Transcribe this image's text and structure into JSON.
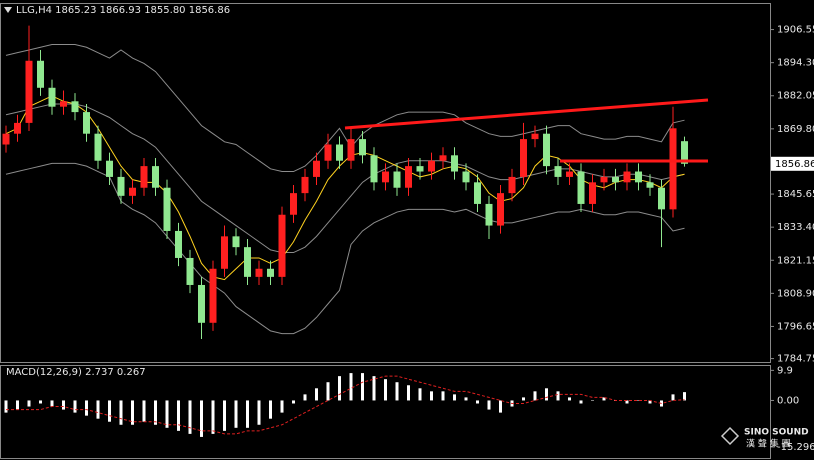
{
  "chart_data": [
    {
      "type": "candlestick",
      "title": "LLG,H4  1865.23 1866.93 1855.80 1856.86",
      "open": [
        1864,
        1868,
        1872,
        1895,
        1885,
        1878,
        1880,
        1876,
        1868,
        1858,
        1852,
        1845,
        1848,
        1856,
        1848,
        1832,
        1822,
        1812,
        1798,
        1818,
        1830,
        1826,
        1815,
        1818,
        1815,
        1838,
        1846,
        1852,
        1858,
        1864,
        1858,
        1866,
        1860,
        1850,
        1854,
        1848,
        1856,
        1854,
        1858,
        1860,
        1854,
        1850,
        1842,
        1834,
        1846,
        1852,
        1866,
        1868,
        1856,
        1852,
        1854,
        1842,
        1850,
        1852,
        1850,
        1854,
        1850,
        1848,
        1840,
        1865.23
      ],
      "high": [
        1871,
        1875,
        1908,
        1899,
        1888,
        1884,
        1883,
        1879,
        1871,
        1861,
        1855,
        1851,
        1859,
        1859,
        1851,
        1835,
        1825,
        1815,
        1821,
        1834,
        1833,
        1829,
        1821,
        1821,
        1841,
        1849,
        1855,
        1861,
        1868,
        1867,
        1870,
        1869,
        1863,
        1857,
        1857,
        1859,
        1859,
        1861,
        1863,
        1863,
        1857,
        1853,
        1845,
        1849,
        1855,
        1872,
        1871,
        1871,
        1859,
        1857,
        1857,
        1853,
        1855,
        1855,
        1857,
        1857,
        1853,
        1851,
        1878,
        1866.93
      ],
      "low": [
        1861,
        1865,
        1869,
        1882,
        1875,
        1875,
        1873,
        1865,
        1855,
        1849,
        1842,
        1842,
        1845,
        1845,
        1829,
        1819,
        1809,
        1792,
        1795,
        1815,
        1823,
        1812,
        1812,
        1812,
        1812,
        1835,
        1843,
        1849,
        1855,
        1855,
        1855,
        1857,
        1847,
        1847,
        1845,
        1845,
        1851,
        1851,
        1855,
        1851,
        1847,
        1839,
        1829,
        1831,
        1843,
        1849,
        1863,
        1853,
        1849,
        1849,
        1839,
        1839,
        1847,
        1847,
        1847,
        1847,
        1845,
        1826,
        1837,
        1855.8
      ],
      "close": [
        1868,
        1872,
        1895,
        1885,
        1878,
        1880,
        1876,
        1868,
        1858,
        1852,
        1845,
        1848,
        1856,
        1848,
        1832,
        1822,
        1812,
        1798,
        1818,
        1830,
        1826,
        1815,
        1818,
        1815,
        1838,
        1846,
        1852,
        1858,
        1864,
        1858,
        1866,
        1860,
        1850,
        1854,
        1848,
        1856,
        1854,
        1858,
        1860,
        1854,
        1850,
        1842,
        1834,
        1846,
        1852,
        1866,
        1868,
        1856,
        1852,
        1854,
        1842,
        1850,
        1852,
        1850,
        1854,
        1850,
        1848,
        1840,
        1870,
        1856.86
      ],
      "up_color": "#ff2020",
      "down_color": "#90e890",
      "series": [
        {
          "color": "#8c8c8c",
          "values": [
            1897,
            1898,
            1899,
            1900,
            1901,
            1901,
            1901,
            1900,
            1898,
            1896,
            1899,
            1896,
            1894,
            1891,
            1886,
            1881,
            1876,
            1871,
            1868,
            1865,
            1864,
            1861,
            1858,
            1855,
            1854,
            1854,
            1856,
            1860,
            1865,
            1870,
            1863,
            1868,
            1871,
            1873,
            1875,
            1876,
            1876,
            1876,
            1876,
            1875,
            1872,
            1870,
            1868,
            1867,
            1867,
            1868,
            1869,
            1870,
            1871,
            1871,
            1868,
            1867,
            1866,
            1866,
            1867,
            1867,
            1866,
            1865,
            1872,
            1873
          ]
        },
        {
          "color": "#8c8c8c",
          "values": [
            1875,
            1876,
            1877,
            1878,
            1879,
            1879,
            1879,
            1878,
            1876,
            1874,
            1871,
            1868,
            1866,
            1863,
            1858,
            1853,
            1848,
            1843,
            1840,
            1837,
            1834,
            1831,
            1828,
            1825,
            1824,
            1824,
            1826,
            1830,
            1835,
            1840,
            1845,
            1850,
            1853,
            1855,
            1857,
            1858,
            1858,
            1858,
            1858,
            1857,
            1856,
            1854,
            1852,
            1851,
            1851,
            1852,
            1853,
            1854,
            1855,
            1855,
            1854,
            1853,
            1852,
            1852,
            1853,
            1853,
            1852,
            1851,
            1852,
            1853
          ]
        },
        {
          "color": "#8c8c8c",
          "values": [
            1853,
            1854,
            1855,
            1856,
            1857,
            1857,
            1857,
            1856,
            1854,
            1852,
            1843,
            1840,
            1838,
            1835,
            1830,
            1825,
            1820,
            1815,
            1812,
            1809,
            1804,
            1801,
            1798,
            1795,
            1794,
            1794,
            1796,
            1800,
            1805,
            1810,
            1827,
            1832,
            1835,
            1837,
            1839,
            1840,
            1840,
            1840,
            1840,
            1839,
            1840,
            1838,
            1836,
            1835,
            1835,
            1836,
            1837,
            1838,
            1839,
            1839,
            1840,
            1839,
            1838,
            1838,
            1839,
            1839,
            1838,
            1837,
            1832,
            1833
          ]
        },
        {
          "color": "#ffd21f",
          "values": [
            1868,
            1870,
            1878,
            1880,
            1882,
            1880,
            1879,
            1876,
            1870,
            1863,
            1856,
            1851,
            1850,
            1850,
            1846,
            1839,
            1830,
            1820,
            1815,
            1814,
            1818,
            1822,
            1822,
            1820,
            1822,
            1828,
            1836,
            1843,
            1851,
            1856,
            1860,
            1861,
            1860,
            1858,
            1856,
            1854,
            1852,
            1853,
            1855,
            1856,
            1855,
            1852,
            1846,
            1843,
            1844,
            1848,
            1856,
            1860,
            1859,
            1856,
            1851,
            1849,
            1848,
            1850,
            1851,
            1851,
            1850,
            1848,
            1852,
            1853
          ]
        }
      ],
      "ylim": [
        1783.3,
        1916.2
      ],
      "yticks": [
        1906.55,
        {
          "value": 1894.3,
          "label": "1894.30"
        },
        1882.05,
        {
          "value": 1869.8,
          "label": "1869.80"
        },
        1845.65,
        {
          "value": 1833.4,
          "label": "1833.40"
        },
        1821.15,
        {
          "value": 1808.9,
          "label": "1808.90"
        },
        1796.65,
        1784.75
      ],
      "last_price": 1856.86,
      "grid": false
    },
    {
      "type": "bar",
      "title": "MACD(12,26,9) 2.737 0.267",
      "values": [
        -4,
        -3,
        -2,
        -1,
        -2,
        -3,
        -4,
        -5,
        -6,
        -7,
        -8,
        -8,
        -7,
        -8,
        -9,
        -10,
        -11,
        -12,
        -11,
        -10,
        -9,
        -9,
        -8,
        -6,
        -4,
        -1,
        2,
        4,
        6,
        8,
        9,
        9,
        8,
        7,
        6,
        5,
        4,
        3,
        3,
        2,
        1,
        -1,
        -3,
        -4,
        -2,
        1,
        3,
        4,
        3,
        1,
        -1,
        0,
        1,
        0,
        -1,
        0,
        -1,
        -2,
        2,
        2.737
      ],
      "color": "#ffffff",
      "signal": [
        -3,
        -3,
        -3,
        -3,
        -2,
        -2,
        -3,
        -3,
        -4,
        -5,
        -6,
        -7,
        -7,
        -7,
        -8,
        -8,
        -9,
        -10,
        -10,
        -11,
        -11,
        -10,
        -10,
        -9,
        -8,
        -6,
        -4,
        -2,
        0,
        2,
        4,
        6,
        7,
        8,
        8,
        7,
        6,
        5,
        4,
        3,
        3,
        2,
        1,
        0,
        -1,
        -1,
        0,
        1,
        2,
        2,
        2,
        1,
        1,
        0,
        0,
        0,
        0,
        -1,
        0,
        0.267
      ],
      "signal_color": "#e02020",
      "ylim": [
        -19.1,
        11.5
      ],
      "yticks": [
        9.9,
        {
          "value": 0,
          "label": "0.00"
        },
        -15.296
      ],
      "grid": false
    }
  ],
  "logo": {
    "name": "SINO SOUND",
    "subtitle": "漢 聲 集 團"
  }
}
